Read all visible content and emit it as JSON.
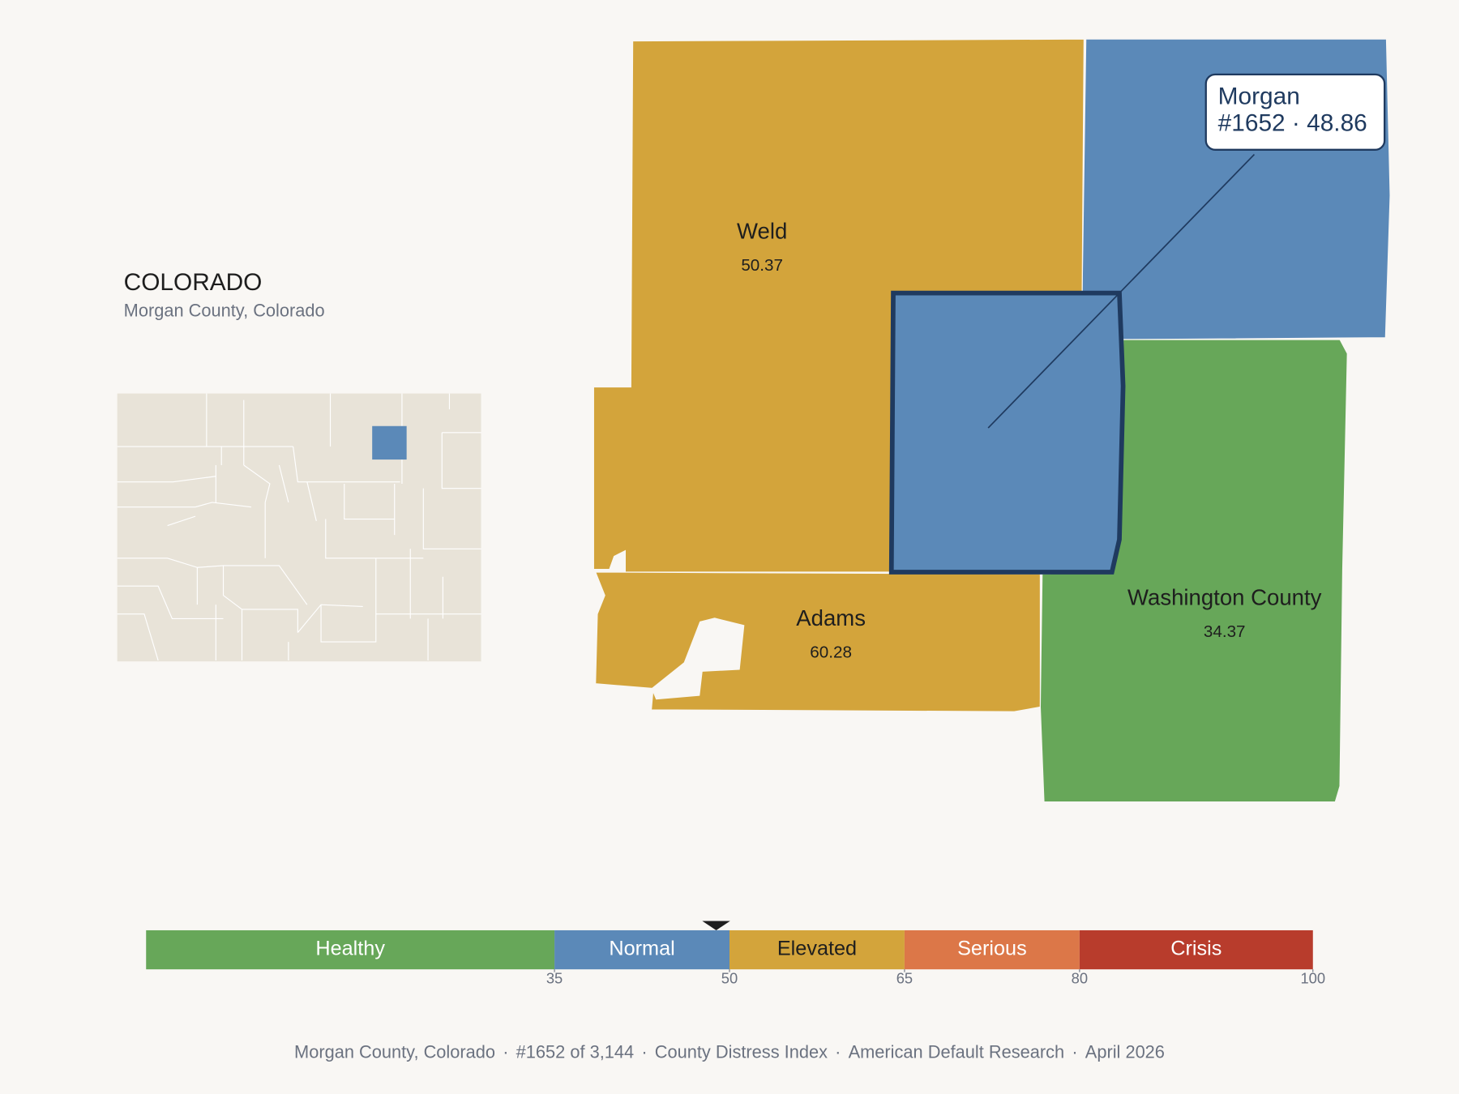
{
  "header": {
    "title": "COLORADO",
    "subtitle": "Morgan County, Colorado"
  },
  "counties": [
    {
      "name": "Weld",
      "value": 50.37
    },
    {
      "name": "Morgan",
      "value": 48.86,
      "selected": true
    },
    {
      "name": "Adams",
      "value": 60.28
    },
    {
      "name": "Washington County",
      "value": 34.37
    }
  ],
  "tooltip": {
    "name": "Morgan",
    "label": "#1652 · 48.86"
  },
  "scale": {
    "xlim": [
      0,
      100
    ],
    "xticks": [
      35,
      50,
      65,
      80,
      100
    ],
    "marker": 48.86,
    "bands": [
      {
        "name": "Healthy",
        "from": 0,
        "to": 35,
        "color": "#67a759",
        "text_color": "#ffffff"
      },
      {
        "name": "Normal",
        "from": 35,
        "to": 50,
        "color": "#5b89b8",
        "text_color": "#ffffff"
      },
      {
        "name": "Elevated",
        "from": 50,
        "to": 65,
        "color": "#d3a43b",
        "text_color": "#1e1e1e"
      },
      {
        "name": "Serious",
        "from": 65,
        "to": 80,
        "color": "#dc7748",
        "text_color": "#ffffff"
      },
      {
        "name": "Crisis",
        "from": 80,
        "to": 100,
        "color": "#b83c2c",
        "text_color": "#ffffff"
      }
    ]
  },
  "footer": {
    "separator": "·",
    "parts": [
      "Morgan County, Colorado",
      "#1652 of 3,144",
      "County Distress Index",
      "American Default Research",
      "April 2026"
    ]
  }
}
